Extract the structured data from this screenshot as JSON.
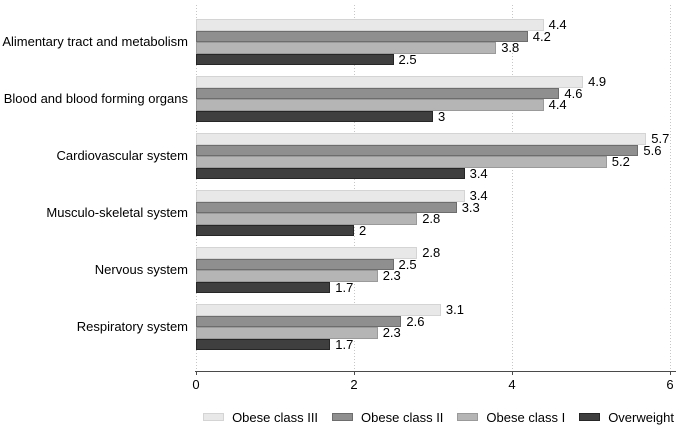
{
  "chart_data": {
    "type": "bar",
    "orientation": "horizontal",
    "title": "",
    "categories": [
      "Alimentary tract and metabolism",
      "Blood and blood forming organs",
      "Cardiovascular system",
      "Musculo-skeletal system",
      "Nervous system",
      "Respiratory system"
    ],
    "series": [
      {
        "name": "Obese class III",
        "color": "#e8e8e8",
        "border_color": "#d4d4d4",
        "values": [
          4.4,
          4.9,
          5.7,
          3.4,
          2.8,
          3.1
        ]
      },
      {
        "name": "Obese class II",
        "color": "#8f8f8f",
        "border_color": "#6d6d6d",
        "values": [
          4.2,
          4.6,
          5.6,
          3.3,
          2.5,
          2.6
        ]
      },
      {
        "name": "Obese class I",
        "color": "#b5b5b5",
        "border_color": "#9a9a9a",
        "values": [
          3.8,
          4.4,
          5.2,
          2.8,
          2.3,
          2.3
        ]
      },
      {
        "name": "Overweight",
        "color": "#3f3f3f",
        "border_color": "#262626",
        "values": [
          2.5,
          3,
          3.4,
          2,
          1.7,
          1.7
        ]
      }
    ],
    "xlim": [
      0,
      6
    ],
    "xticks": [
      0,
      2,
      4,
      6
    ],
    "grid": "vertical-dotted",
    "gridline_color": "#c6c6c6",
    "axis_color": "#4a4a4a",
    "text_color": "#000000",
    "background_color": "#ffffff",
    "legend_position": "bottom",
    "value_labels": true
  }
}
